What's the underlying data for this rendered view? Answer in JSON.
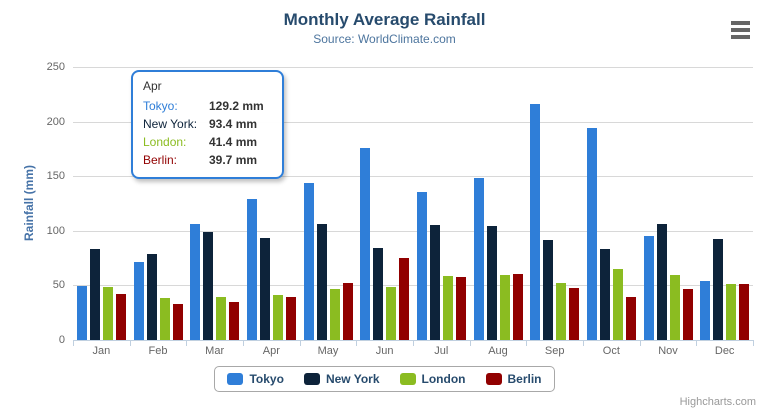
{
  "chart": {
    "title": "Monthly Average Rainfall",
    "subtitle": "Source: WorldClimate.com",
    "credits": "Highcharts.com",
    "menu_icon": "hamburger-icon"
  },
  "chart_data": {
    "type": "bar",
    "title": "Monthly Average Rainfall",
    "subtitle": "Source: WorldClimate.com",
    "categories": [
      "Jan",
      "Feb",
      "Mar",
      "Apr",
      "May",
      "Jun",
      "Jul",
      "Aug",
      "Sep",
      "Oct",
      "Nov",
      "Dec"
    ],
    "series": [
      {
        "name": "Tokyo",
        "color": "#2f7ed8",
        "values": [
          49.9,
          71.5,
          106.4,
          129.2,
          144.0,
          176.0,
          135.6,
          148.5,
          216.4,
          194.1,
          95.6,
          54.4
        ]
      },
      {
        "name": "New York",
        "color": "#0d233a",
        "values": [
          83.6,
          78.8,
          98.5,
          93.4,
          106.0,
          84.5,
          105.0,
          104.3,
          91.2,
          83.5,
          106.6,
          92.3
        ]
      },
      {
        "name": "London",
        "color": "#8bbc21",
        "values": [
          48.9,
          38.8,
          39.3,
          41.4,
          47.0,
          48.3,
          59.0,
          59.6,
          52.4,
          65.2,
          59.3,
          51.2
        ]
      },
      {
        "name": "Berlin",
        "color": "#910000",
        "values": [
          42.4,
          33.2,
          34.5,
          39.7,
          52.6,
          75.5,
          57.4,
          60.4,
          47.6,
          39.1,
          46.8,
          51.1
        ]
      }
    ],
    "xlabel": "",
    "ylabel": "Rainfall (mm)",
    "ylim": [
      0,
      250
    ],
    "yticks": [
      0,
      50,
      100,
      150,
      200,
      250
    ],
    "grid": true,
    "legend_position": "bottom"
  },
  "tooltip": {
    "header": "Apr",
    "rows": [
      {
        "name": "Tokyo:",
        "value": "129.2 mm",
        "color": "#2f7ed8"
      },
      {
        "name": "New York:",
        "value": "93.4 mm",
        "color": "#0d233a"
      },
      {
        "name": "London:",
        "value": "41.4 mm",
        "color": "#8bbc21"
      },
      {
        "name": "Berlin:",
        "value": "39.7 mm",
        "color": "#910000"
      }
    ]
  },
  "legend": {
    "items": [
      {
        "label": "Tokyo",
        "color": "#2f7ed8"
      },
      {
        "label": "New York",
        "color": "#0d233a"
      },
      {
        "label": "London",
        "color": "#8bbc21"
      },
      {
        "label": "Berlin",
        "color": "#910000"
      }
    ]
  }
}
